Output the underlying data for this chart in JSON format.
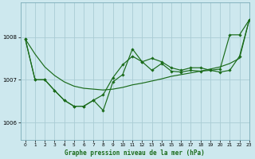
{
  "title": "Graphe pression niveau de la mer (hPa)",
  "bg_color": "#cde8ee",
  "grid_color": "#aaccd4",
  "line_color": "#1a6b1a",
  "marker_color": "#1a6b1a",
  "xlim": [
    -0.5,
    23
  ],
  "ylim": [
    1005.6,
    1008.8
  ],
  "yticks": [
    1006,
    1007,
    1008
  ],
  "xticks": [
    0,
    1,
    2,
    3,
    4,
    5,
    6,
    7,
    8,
    9,
    10,
    11,
    12,
    13,
    14,
    15,
    16,
    17,
    18,
    19,
    20,
    21,
    22,
    23
  ],
  "series1_x": [
    0,
    1,
    2,
    3,
    4,
    5,
    6,
    7,
    8,
    9,
    10,
    11,
    12,
    13,
    14,
    15,
    16,
    17,
    18,
    19,
    20,
    21,
    22,
    23
  ],
  "series1_y": [
    1007.95,
    1007.6,
    1007.3,
    1007.1,
    1006.95,
    1006.85,
    1006.8,
    1006.78,
    1006.76,
    1006.78,
    1006.82,
    1006.88,
    1006.92,
    1006.97,
    1007.02,
    1007.08,
    1007.12,
    1007.16,
    1007.2,
    1007.25,
    1007.3,
    1007.38,
    1007.5,
    1008.4
  ],
  "series2_x": [
    0,
    1,
    2,
    3,
    4,
    5,
    6,
    7,
    8,
    9,
    10,
    11,
    12,
    13,
    14,
    15,
    16,
    17,
    18,
    19,
    20,
    21,
    22,
    23
  ],
  "series2_y": [
    1007.95,
    1007.0,
    1007.0,
    1006.75,
    1006.52,
    1006.38,
    1006.38,
    1006.52,
    1006.28,
    1006.95,
    1007.12,
    1007.72,
    1007.42,
    1007.22,
    1007.38,
    1007.2,
    1007.18,
    1007.22,
    1007.2,
    1007.22,
    1007.18,
    1007.22,
    1007.55,
    1008.4
  ],
  "series3_x": [
    0,
    1,
    2,
    3,
    4,
    5,
    6,
    7,
    8,
    9,
    10,
    11,
    12,
    13,
    14,
    15,
    16,
    17,
    18,
    19,
    20,
    21,
    22,
    23
  ],
  "series3_y": [
    1007.95,
    1007.0,
    1007.0,
    1006.75,
    1006.52,
    1006.38,
    1006.38,
    1006.52,
    1006.65,
    1007.05,
    1007.35,
    1007.55,
    1007.42,
    1007.5,
    1007.42,
    1007.28,
    1007.22,
    1007.28,
    1007.28,
    1007.22,
    1007.25,
    1008.05,
    1008.05,
    1008.4
  ]
}
